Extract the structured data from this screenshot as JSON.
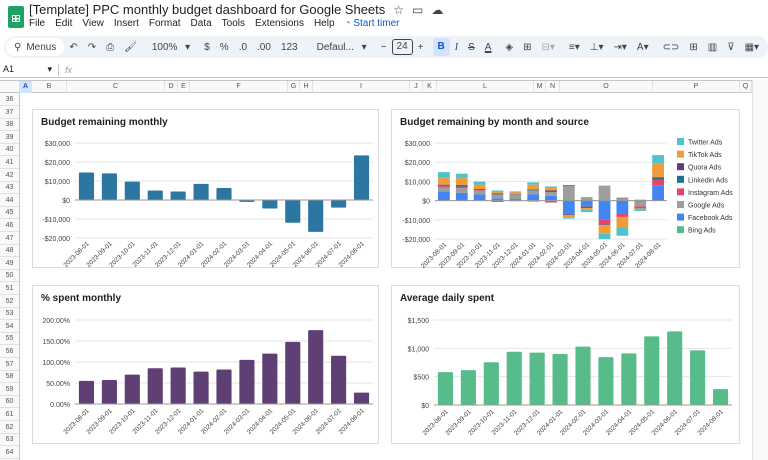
{
  "app": {
    "title": "[Template] PPC monthly budget dashboard for Google Sheets",
    "menu": [
      "File",
      "Edit",
      "View",
      "Insert",
      "Format",
      "Data",
      "Tools",
      "Extensions",
      "Help"
    ],
    "timer": "Start timer"
  },
  "toolbar": {
    "search": "Menus",
    "zoom": "100%",
    "currency": "$",
    "percent": "%",
    "dec_less": ".0",
    "dec_more": ".00",
    "format_123": "123",
    "font": "Defaul...",
    "minus": "−",
    "font_size": "24",
    "plus": "+",
    "bold": "B",
    "italic": "I",
    "strike": "S",
    "text_color": "A",
    "sigma": "Σ"
  },
  "formula_bar": {
    "cell_ref": "A1",
    "fx": "fx",
    "value": ""
  },
  "columns": [
    "A",
    "B",
    "C",
    "D",
    "E",
    "F",
    "G",
    "H",
    "I",
    "J",
    "K",
    "L",
    "M",
    "N",
    "O",
    "P",
    "Q"
  ],
  "rows": [
    "36",
    "37",
    "38",
    "39",
    "40",
    "41",
    "42",
    "43",
    "44",
    "45",
    "46",
    "47",
    "48",
    "49",
    "50",
    "51",
    "52",
    "53",
    "54",
    "55",
    "56",
    "57",
    "58",
    "59",
    "60",
    "61",
    "62",
    "63",
    "64"
  ],
  "chart_data": [
    {
      "type": "bar",
      "title": "Budget remaining monthly",
      "color": "#2c76a2",
      "categories": [
        "2023-08-01",
        "2023-09-01",
        "2023-10-01",
        "2023-11-01",
        "2023-12-01",
        "2024-01-01",
        "2024-02-01",
        "2024-03-01",
        "2024-04-01",
        "2024-05-01",
        "2024-06-01",
        "2024-07-01",
        "2024-08-01"
      ],
      "values": [
        14500,
        14000,
        9700,
        5000,
        4500,
        8500,
        6300,
        -1000,
        -4500,
        -12000,
        -16800,
        -4000,
        23500
      ],
      "ylim": [
        -20000,
        30000
      ],
      "yticks": [
        30000,
        20000,
        10000,
        0,
        -10000,
        -20000
      ],
      "ytick_labels": [
        "$30,000",
        "$20,000",
        "$10,000",
        "$0",
        "-$10,000",
        "-$20,000"
      ]
    },
    {
      "type": "bar",
      "stacked": true,
      "title": "Budget remaining by month and source",
      "categories": [
        "2023-08-01",
        "2023-09-01",
        "2023-10-01",
        "2023-11-01",
        "2023-12-01",
        "2024-01-01",
        "2024-02-01",
        "2024-03-01",
        "2024-04-01",
        "2024-05-01",
        "2024-06-01",
        "2024-07-01",
        "2024-08-01"
      ],
      "series": [
        {
          "name": "Bing Ads",
          "color": "#57bb8a",
          "values": [
            300,
            0,
            200,
            0,
            0,
            300,
            300,
            300,
            300,
            300,
            0,
            500,
            0
          ]
        },
        {
          "name": "Facebook Ads",
          "color": "#4285f4",
          "values": [
            4500,
            4000,
            3000,
            1200,
            800,
            3000,
            2200,
            -6500,
            -2500,
            -10000,
            -6500,
            -500,
            8000
          ]
        },
        {
          "name": "Google Ads",
          "color": "#9e9e9e",
          "values": [
            2000,
            2500,
            2000,
            2000,
            2300,
            2000,
            2000,
            7500,
            1500,
            7500,
            1200,
            -2500,
            0
          ]
        },
        {
          "name": "Instagram Ads",
          "color": "#e8436a",
          "values": [
            700,
            800,
            300,
            -700,
            -300,
            -500,
            -1000,
            -700,
            -500,
            -2500,
            -2000,
            -1000,
            3000
          ]
        },
        {
          "name": "Linkedin Ads",
          "color": "#1f6e96",
          "values": [
            500,
            500,
            300,
            300,
            200,
            300,
            500,
            -300,
            -300,
            -300,
            0,
            -200,
            1200
          ]
        },
        {
          "name": "Quora Ads",
          "color": "#5e3f7a",
          "values": [
            300,
            400,
            200,
            200,
            200,
            300,
            300,
            300,
            -500,
            0,
            300,
            0,
            0
          ]
        },
        {
          "name": "TikTok Ads",
          "color": "#f09c38",
          "values": [
            3800,
            3500,
            2300,
            1000,
            1000,
            2400,
            1500,
            -1200,
            -1000,
            -4500,
            -5300,
            -700,
            7000
          ]
        },
        {
          "name": "Twitter Ads",
          "color": "#4ec3cb",
          "values": [
            2700,
            2300,
            1600,
            600,
            300,
            1200,
            600,
            -700,
            -1200,
            -2800,
            -4500,
            -500,
            4500
          ]
        }
      ],
      "ylim": [
        -20000,
        30000
      ],
      "yticks": [
        30000,
        20000,
        10000,
        0,
        -10000,
        -20000
      ],
      "ytick_labels": [
        "$30,000",
        "$20,000",
        "$10,000",
        "$0",
        "-$10,000",
        "-$20,000"
      ],
      "legend": "right"
    },
    {
      "type": "bar",
      "title": "% spent monthly",
      "color": "#5f4075",
      "categories": [
        "2023-08-01",
        "2023-09-01",
        "2023-10-01",
        "2023-11-01",
        "2023-12-01",
        "2024-01-01",
        "2024-02-01",
        "2024-03-01",
        "2024-04-01",
        "2024-05-01",
        "2024-06-01",
        "2024-07-01",
        "2024-08-01"
      ],
      "values": [
        55,
        57,
        70,
        85,
        87,
        77,
        82,
        105,
        120,
        148,
        176,
        115,
        27
      ],
      "ylim": [
        0,
        200
      ],
      "yticks": [
        200,
        150,
        100,
        50,
        0
      ],
      "ytick_labels": [
        "200.00%",
        "150.00%",
        "100.00%",
        "50.00%",
        "0.00%"
      ]
    },
    {
      "type": "bar",
      "title": "Average daily spent",
      "color": "#57bb8a",
      "categories": [
        "2023-08-01",
        "2023-09-01",
        "2023-10-01",
        "2023-11-01",
        "2023-12-01",
        "2024-01-01",
        "2024-02-01",
        "2024-03-01",
        "2024-04-01",
        "2024-05-01",
        "2024-06-01",
        "2024-07-01",
        "2024-08-01"
      ],
      "values": [
        580,
        615,
        755,
        940,
        925,
        900,
        1030,
        845,
        910,
        1210,
        1300,
        965,
        280
      ],
      "ylim": [
        0,
        1500
      ],
      "yticks": [
        1500,
        1000,
        500,
        0
      ],
      "ytick_labels": [
        "$1,500",
        "$1,000",
        "$500",
        "$0"
      ]
    }
  ]
}
